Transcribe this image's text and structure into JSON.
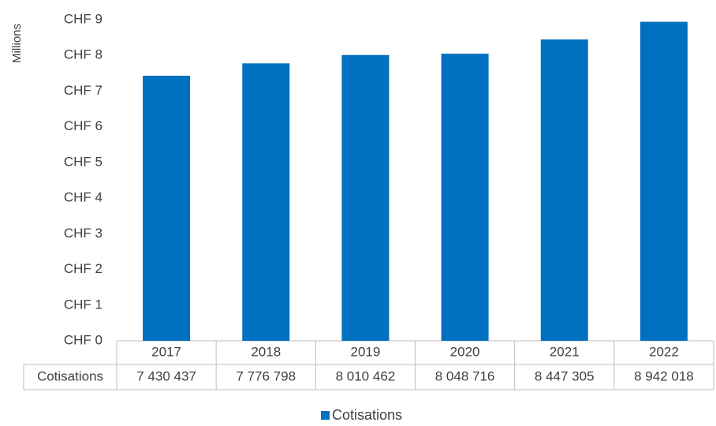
{
  "chart_data": {
    "type": "bar",
    "y_label": "Millions",
    "categories": [
      "2017",
      "2018",
      "2019",
      "2020",
      "2021",
      "2022"
    ],
    "series": [
      {
        "name": "Cotisations",
        "color": "#0070c0",
        "values": [
          7.430437,
          7.776798,
          8.010462,
          8.048716,
          8.447305,
          8.942018
        ],
        "value_labels": [
          "7 430 437",
          "7 776 798",
          "8 010 462",
          "8 048 716",
          "8 447 305",
          "8 942 018"
        ]
      }
    ],
    "ylim": [
      0,
      9
    ],
    "yticks": [
      {
        "value": 0,
        "label": "CHF 0"
      },
      {
        "value": 1,
        "label": "CHF 1"
      },
      {
        "value": 2,
        "label": "CHF 2"
      },
      {
        "value": 3,
        "label": "CHF 3"
      },
      {
        "value": 4,
        "label": "CHF 4"
      },
      {
        "value": 5,
        "label": "CHF 5"
      },
      {
        "value": 6,
        "label": "CHF 6"
      },
      {
        "value": 7,
        "label": "CHF 7"
      },
      {
        "value": 8,
        "label": "CHF 8"
      },
      {
        "value": 9,
        "label": "CHF 9"
      }
    ],
    "grid": false,
    "legend": "bottom"
  }
}
